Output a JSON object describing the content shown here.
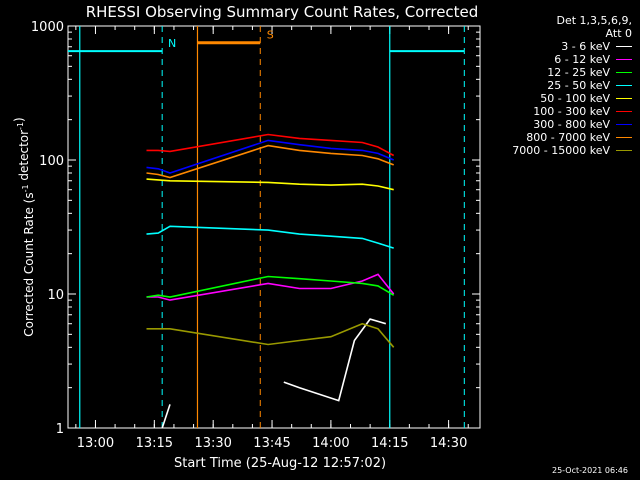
{
  "chart_data": {
    "type": "line",
    "title": "RHESSI Observing Summary Count Rates, Corrected",
    "xlabel": "Start Time (25-Aug-12 12:57:02)",
    "ylabel_main": "Corrected Count Rate (s",
    "ylabel_sup1": "-1",
    "ylabel_mid": " detector",
    "ylabel_sup2": "-1",
    "ylabel_end": ")",
    "y_scale": "log",
    "ylim": [
      1,
      1000
    ],
    "xlim_minutes": [
      "12:53",
      "14:38"
    ],
    "x_tick_labels": [
      "13:00",
      "13:15",
      "13:30",
      "13:45",
      "14:00",
      "14:15",
      "14:30"
    ],
    "y_tick_labels": [
      "1",
      "10",
      "100",
      "1000"
    ],
    "legend": {
      "header_line1": "Det 1,3,5,6,9,",
      "header_line2": "Att 0",
      "placement": "top-right, outside plot"
    },
    "series": [
      {
        "name": "3 - 6 keV",
        "color": "#ffffff",
        "x": [
          "13:17",
          "13:19",
          "13:36",
          "13:48",
          "13:52",
          "14:02",
          "14:06",
          "14:10",
          "14:14"
        ],
        "values": [
          1,
          1.5,
          null,
          2.2,
          2.0,
          1.6,
          4.5,
          6.5,
          6
        ]
      },
      {
        "name": "6 - 12 keV",
        "color": "#ff00ff",
        "x": [
          "13:13",
          "13:16",
          "13:19",
          "13:44",
          "13:52",
          "14:00",
          "14:08",
          "14:12",
          "14:16"
        ],
        "values": [
          9.5,
          9.5,
          9.0,
          12,
          11,
          11,
          12.5,
          14,
          10
        ]
      },
      {
        "name": "12 - 25 keV",
        "color": "#00ff00",
        "x": [
          "13:13",
          "13:16",
          "13:19",
          "13:44",
          "13:52",
          "14:00",
          "14:08",
          "14:12",
          "14:16"
        ],
        "values": [
          9.5,
          9.8,
          9.5,
          13.5,
          13,
          12.5,
          12,
          11.5,
          9.8
        ]
      },
      {
        "name": "25 - 50 keV",
        "color": "#00ffff",
        "x": [
          "13:13",
          "13:16",
          "13:19",
          "13:44",
          "13:52",
          "14:00",
          "14:08",
          "14:12",
          "14:16"
        ],
        "values": [
          28,
          28.5,
          32,
          30,
          28,
          27,
          26,
          24,
          22
        ]
      },
      {
        "name": "50 - 100 keV",
        "color": "#ffff00",
        "x": [
          "13:13",
          "13:16",
          "13:19",
          "13:44",
          "13:52",
          "14:00",
          "14:08",
          "14:12",
          "14:16"
        ],
        "values": [
          72,
          71,
          70,
          68,
          66,
          65,
          66,
          64,
          60
        ]
      },
      {
        "name": "100 - 300 keV",
        "color": "#ff0000",
        "x": [
          "13:13",
          "13:16",
          "13:19",
          "13:44",
          "13:52",
          "14:00",
          "14:08",
          "14:12",
          "14:16"
        ],
        "values": [
          118,
          118,
          116,
          155,
          145,
          140,
          135,
          125,
          108
        ]
      },
      {
        "name": "300 - 800 keV",
        "color": "#0000ff",
        "x": [
          "13:13",
          "13:16",
          "13:19",
          "13:44",
          "13:52",
          "14:00",
          "14:08",
          "14:12",
          "14:16"
        ],
        "values": [
          88,
          86,
          80,
          140,
          130,
          122,
          118,
          112,
          100
        ]
      },
      {
        "name": "800 - 7000 keV",
        "color": "#ff8800",
        "x": [
          "13:13",
          "13:16",
          "13:19",
          "13:44",
          "13:52",
          "14:00",
          "14:08",
          "14:12",
          "14:16"
        ],
        "values": [
          80,
          78,
          74,
          128,
          118,
          112,
          108,
          102,
          92
        ]
      },
      {
        "name": "7000 - 15000 keV",
        "color": "#999900",
        "x": [
          "13:13",
          "13:16",
          "13:19",
          "13:44",
          "13:52",
          "14:00",
          "14:08",
          "14:12",
          "14:16"
        ],
        "values": [
          5.5,
          5.5,
          5.5,
          4.2,
          4.5,
          4.8,
          6,
          5.5,
          4
        ]
      }
    ],
    "annotations": [
      {
        "label": "N",
        "color": "#00ffff",
        "x_start": "12:53",
        "x_end": "13:17",
        "level": 650,
        "dashed_at": "13:17"
      },
      {
        "label": "",
        "color": "#00ffff",
        "x_start": "14:15",
        "x_end": "14:34",
        "level": 650,
        "dashed_at": "14:34"
      },
      {
        "label": "S",
        "color": "#ff8800",
        "x_start": "13:26",
        "x_end": "13:42",
        "level": 750,
        "dashed_at": "13:42"
      }
    ],
    "grid": false
  },
  "footer": {
    "date": "25-Oct-2021 06:46"
  }
}
